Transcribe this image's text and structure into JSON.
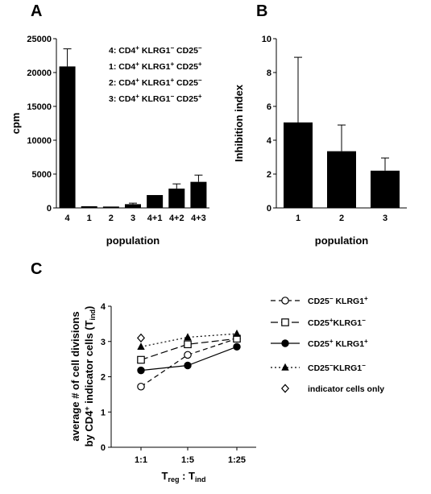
{
  "panels": {
    "a": "A",
    "b": "B",
    "c": "C"
  },
  "chart_data": [
    {
      "id": "A",
      "type": "bar",
      "categories": [
        "4",
        "1",
        "2",
        "3",
        "4+1",
        "4+2",
        "4+3"
      ],
      "values": [
        20900,
        250,
        200,
        550,
        1900,
        2850,
        3850
      ],
      "errors": [
        2600,
        0,
        0,
        150,
        0,
        700,
        1000
      ],
      "xlabel": "population",
      "ylabel": "cpm",
      "ylim": [
        0,
        25000
      ],
      "yticks": [
        "0",
        "5000",
        "10000",
        "15000",
        "20000",
        "25000"
      ],
      "legend": [
        {
          "key": "4",
          "text": "CD4+ KLRG1- CD25-",
          "sup": [
            "+",
            "-",
            "-"
          ]
        },
        {
          "key": "1",
          "text": "CD4+ KLRG1+ CD25+",
          "sup": [
            "+",
            "+",
            "+"
          ]
        },
        {
          "key": "2",
          "text": "CD4+ KLRG1+ CD25-",
          "sup": [
            "+",
            "+",
            "-"
          ]
        },
        {
          "key": "3",
          "text": "CD4+ KLRG1- CD25+",
          "sup": [
            "+",
            "-",
            "+"
          ]
        }
      ]
    },
    {
      "id": "B",
      "type": "bar",
      "categories": [
        "1",
        "2",
        "3"
      ],
      "values": [
        5.05,
        3.35,
        2.2
      ],
      "errors": [
        3.85,
        1.55,
        0.75
      ],
      "xlabel": "population",
      "ylabel": "Inhibition index",
      "ylim": [
        0,
        10
      ],
      "yticks": [
        "0",
        "2",
        "4",
        "6",
        "8",
        "10"
      ]
    },
    {
      "id": "C",
      "type": "line",
      "categories": [
        "1:1",
        "1:5",
        "1:25"
      ],
      "xlabel": "Treg : Tind",
      "ylabel_line1": "average # of cell divisions",
      "ylabel_line2": "by CD4+ indicator cells (Tind)",
      "ylim": [
        0,
        4
      ],
      "yticks": [
        "0",
        "1",
        "2",
        "3",
        "4"
      ],
      "series": [
        {
          "name": "CD25- KLRG1+",
          "marker": "circle-open",
          "dash": "dash",
          "values": [
            1.72,
            2.62,
            3.08
          ]
        },
        {
          "name": "CD25+KLRG1-",
          "marker": "square-open",
          "dash": "longdash",
          "values": [
            2.48,
            2.92,
            3.08
          ]
        },
        {
          "name": "CD25+ KLRG1+",
          "marker": "circle-filled",
          "dash": "solid",
          "values": [
            2.18,
            2.32,
            2.85
          ]
        },
        {
          "name": "CD25-KLRG1-",
          "marker": "triangle-filled",
          "dash": "dot",
          "values": [
            2.85,
            3.12,
            3.22
          ]
        },
        {
          "name": "indicator cells only",
          "marker": "diamond-open",
          "dash": "none",
          "values": [
            3.1,
            null,
            null
          ]
        }
      ]
    }
  ]
}
